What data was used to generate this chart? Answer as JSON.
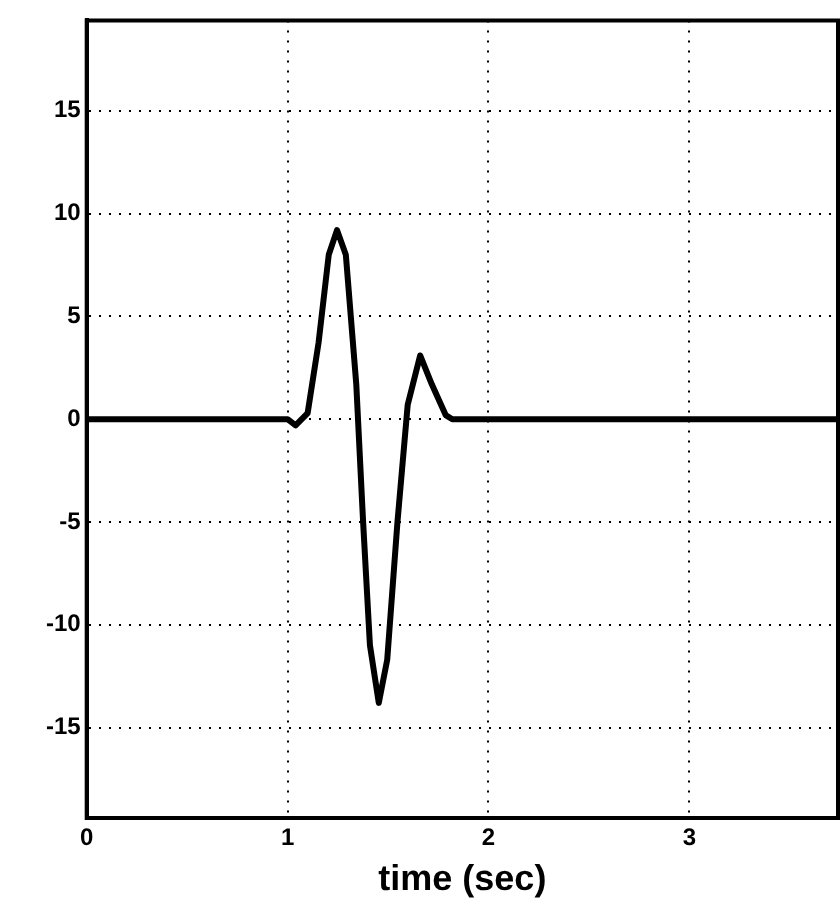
{
  "chart_data": {
    "type": "line",
    "xlabel": "time (sec)",
    "xlim": [
      0,
      3.74
    ],
    "xticks": [
      0,
      1,
      2,
      3
    ],
    "ylim": [
      -19.4,
      19.4
    ],
    "yticks": [
      -15,
      -10,
      -5,
      0,
      5,
      10,
      15
    ],
    "grid": true,
    "line_style": "solid",
    "series": [
      {
        "color": "#000000",
        "x": [
          0,
          1.0,
          1.04,
          1.1,
          1.154,
          1.205,
          1.246,
          1.29,
          1.342,
          1.376,
          1.41,
          1.454,
          1.496,
          1.547,
          1.598,
          1.66,
          1.718,
          1.787,
          1.82,
          3.74
        ],
        "values": [
          0,
          0,
          -0.3,
          0.3,
          3.7,
          8.0,
          9.2,
          8.0,
          1.7,
          -5,
          -11,
          -13.8,
          -11.7,
          -5,
          0.7,
          3.1,
          1.7,
          0.2,
          0,
          0
        ]
      }
    ]
  }
}
